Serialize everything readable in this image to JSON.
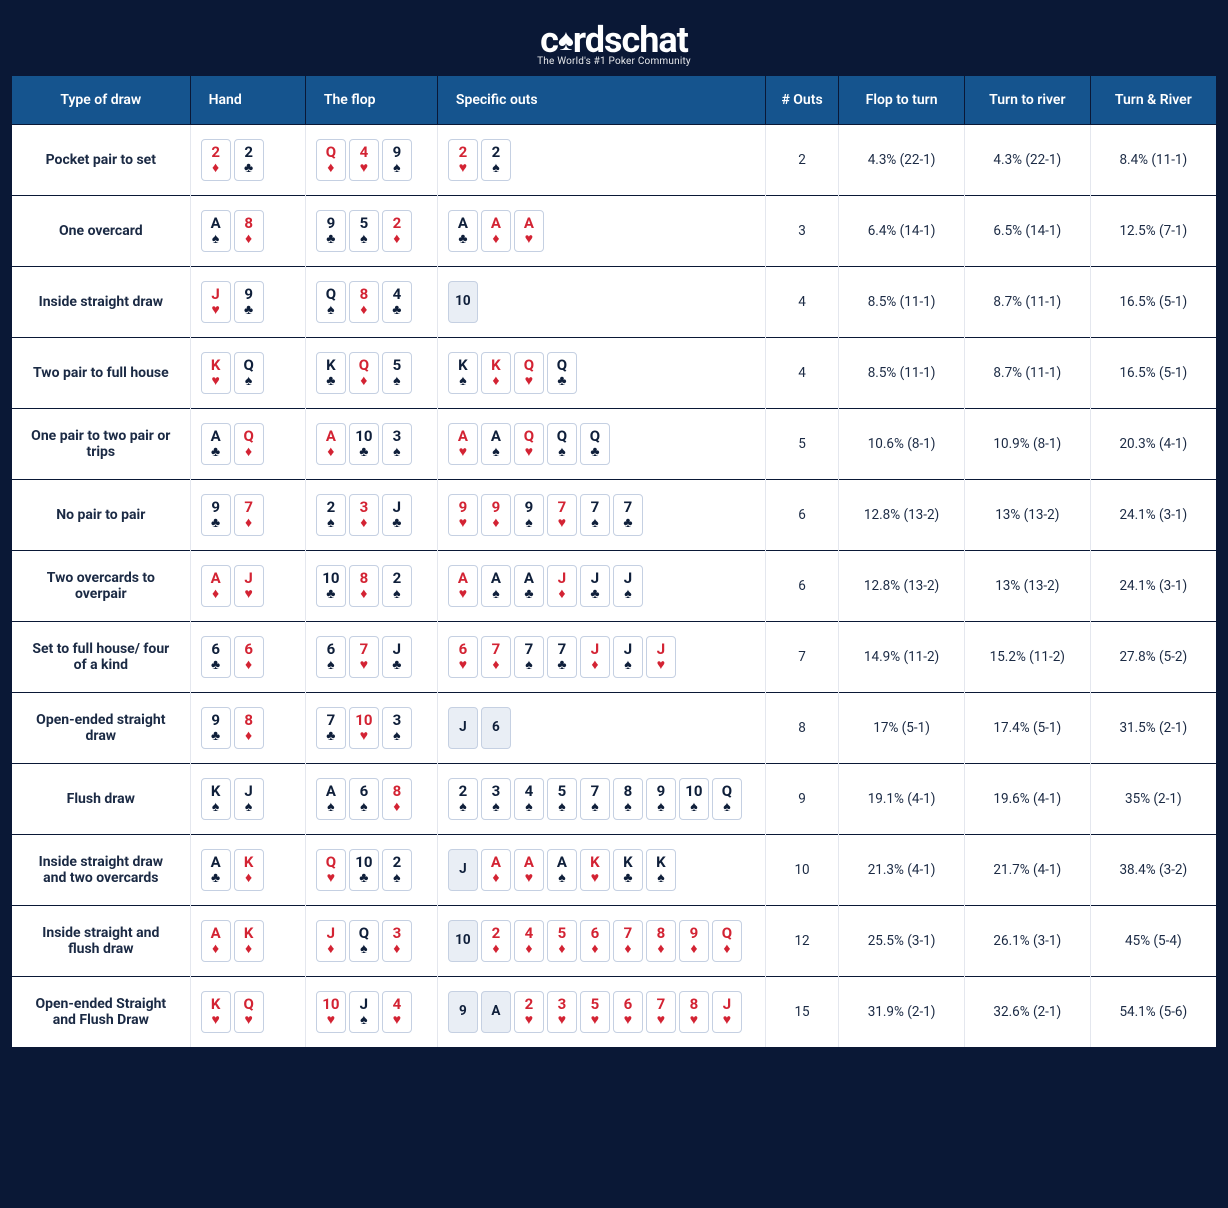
{
  "colors": {
    "page_bg": "#0a1836",
    "header_bg": "#15548e",
    "header_text": "#ffffff",
    "row_border": "#0a1836",
    "cell_border": "#e4e7ee",
    "text": "#1b2a44",
    "card_border": "#c5d0e2",
    "card_red": "#d32333",
    "card_black": "#0f1f3a",
    "blank_bg": "#e9eef5"
  },
  "typography": {
    "header_fontsize": 14,
    "body_fontsize": 13.5,
    "label_fontsize": 14,
    "card_rank_fontsize": 15,
    "card_suit_fontsize": 14
  },
  "logo": {
    "text_a": "c",
    "text_b": "rdschat",
    "tagline": "The World's #1 Poker Community"
  },
  "suits": {
    "s": "♠",
    "h": "♥",
    "d": "♦",
    "c": "♣"
  },
  "columns": [
    "Type of draw",
    "Hand",
    "The flop",
    "Specific outs",
    "# Outs",
    "Flop to turn",
    "Turn to river",
    "Turn & River"
  ],
  "rows": [
    {
      "label": "Pocket pair to set",
      "hand": [
        [
          "2",
          "d"
        ],
        [
          "2",
          "c"
        ]
      ],
      "flop": [
        [
          "Q",
          "d"
        ],
        [
          "4",
          "h"
        ],
        [
          "9",
          "s"
        ]
      ],
      "outs_cards": [
        [
          "2",
          "h"
        ],
        [
          "2",
          "s"
        ]
      ],
      "outs": "2",
      "flop_turn": "4.3% (22-1)",
      "turn_river": "4.3% (22-1)",
      "both": "8.4% (11-1)"
    },
    {
      "label": "One overcard",
      "hand": [
        [
          "A",
          "s"
        ],
        [
          "8",
          "d"
        ]
      ],
      "flop": [
        [
          "9",
          "c"
        ],
        [
          "5",
          "s"
        ],
        [
          "2",
          "d"
        ]
      ],
      "outs_cards": [
        [
          "A",
          "c"
        ],
        [
          "A",
          "d"
        ],
        [
          "A",
          "h"
        ]
      ],
      "outs": "3",
      "flop_turn": "6.4% (14-1)",
      "turn_river": "6.5% (14-1)",
      "both": "12.5% (7-1)"
    },
    {
      "label": "Inside straight draw",
      "hand": [
        [
          "J",
          "h"
        ],
        [
          "9",
          "c"
        ]
      ],
      "flop": [
        [
          "Q",
          "s"
        ],
        [
          "8",
          "d"
        ],
        [
          "4",
          "c"
        ]
      ],
      "outs_cards": [
        [
          "10",
          null
        ]
      ],
      "outs": "4",
      "flop_turn": "8.5% (11-1)",
      "turn_river": "8.7% (11-1)",
      "both": "16.5% (5-1)"
    },
    {
      "label": "Two pair to full house",
      "hand": [
        [
          "K",
          "h"
        ],
        [
          "Q",
          "s"
        ]
      ],
      "flop": [
        [
          "K",
          "c"
        ],
        [
          "Q",
          "d"
        ],
        [
          "5",
          "s"
        ]
      ],
      "outs_cards": [
        [
          "K",
          "s"
        ],
        [
          "K",
          "d"
        ],
        [
          "Q",
          "h"
        ],
        [
          "Q",
          "c"
        ]
      ],
      "outs": "4",
      "flop_turn": "8.5% (11-1)",
      "turn_river": "8.7% (11-1)",
      "both": "16.5% (5-1)"
    },
    {
      "label": "One pair to two pair or trips",
      "hand": [
        [
          "A",
          "c"
        ],
        [
          "Q",
          "d"
        ]
      ],
      "flop": [
        [
          "A",
          "d"
        ],
        [
          "10",
          "c"
        ],
        [
          "3",
          "s"
        ]
      ],
      "outs_cards": [
        [
          "A",
          "h"
        ],
        [
          "A",
          "s"
        ],
        [
          "Q",
          "h"
        ],
        [
          "Q",
          "s"
        ],
        [
          "Q",
          "c"
        ]
      ],
      "outs": "5",
      "flop_turn": "10.6% (8-1)",
      "turn_river": "10.9% (8-1)",
      "both": "20.3% (4-1)"
    },
    {
      "label": "No pair to pair",
      "hand": [
        [
          "9",
          "c"
        ],
        [
          "7",
          "d"
        ]
      ],
      "flop": [
        [
          "2",
          "s"
        ],
        [
          "3",
          "d"
        ],
        [
          "J",
          "c"
        ]
      ],
      "outs_cards": [
        [
          "9",
          "h"
        ],
        [
          "9",
          "d"
        ],
        [
          "9",
          "s"
        ],
        [
          "7",
          "h"
        ],
        [
          "7",
          "s"
        ],
        [
          "7",
          "c"
        ]
      ],
      "outs": "6",
      "flop_turn": "12.8% (13-2)",
      "turn_river": "13% (13-2)",
      "both": "24.1% (3-1)"
    },
    {
      "label": "Two overcards to overpair",
      "hand": [
        [
          "A",
          "d"
        ],
        [
          "J",
          "h"
        ]
      ],
      "flop": [
        [
          "10",
          "c"
        ],
        [
          "8",
          "d"
        ],
        [
          "2",
          "s"
        ]
      ],
      "outs_cards": [
        [
          "A",
          "h"
        ],
        [
          "A",
          "s"
        ],
        [
          "A",
          "c"
        ],
        [
          "J",
          "d"
        ],
        [
          "J",
          "c"
        ],
        [
          "J",
          "s"
        ]
      ],
      "outs": "6",
      "flop_turn": "12.8% (13-2)",
      "turn_river": "13% (13-2)",
      "both": "24.1% (3-1)"
    },
    {
      "label": "Set to full house/ four of a kind",
      "hand": [
        [
          "6",
          "c"
        ],
        [
          "6",
          "d"
        ]
      ],
      "flop": [
        [
          "6",
          "s"
        ],
        [
          "7",
          "h"
        ],
        [
          "J",
          "c"
        ]
      ],
      "outs_cards": [
        [
          "6",
          "h"
        ],
        [
          "7",
          "d"
        ],
        [
          "7",
          "s"
        ],
        [
          "7",
          "c"
        ],
        [
          "J",
          "d"
        ],
        [
          "J",
          "s"
        ],
        [
          "J",
          "h"
        ]
      ],
      "outs": "7",
      "flop_turn": "14.9% (11-2)",
      "turn_river": "15.2% (11-2)",
      "both": "27.8% (5-2)"
    },
    {
      "label": "Open-ended straight draw",
      "hand": [
        [
          "9",
          "c"
        ],
        [
          "8",
          "d"
        ]
      ],
      "flop": [
        [
          "7",
          "c"
        ],
        [
          "10",
          "h"
        ],
        [
          "3",
          "s"
        ]
      ],
      "outs_cards": [
        [
          "J",
          null
        ],
        [
          "6",
          null
        ]
      ],
      "outs": "8",
      "flop_turn": "17% (5-1)",
      "turn_river": "17.4% (5-1)",
      "both": "31.5% (2-1)"
    },
    {
      "label": "Flush draw",
      "hand": [
        [
          "K",
          "s"
        ],
        [
          "J",
          "s"
        ]
      ],
      "flop": [
        [
          "A",
          "s"
        ],
        [
          "6",
          "s"
        ],
        [
          "8",
          "d"
        ]
      ],
      "outs_cards": [
        [
          "2",
          "s"
        ],
        [
          "3",
          "s"
        ],
        [
          "4",
          "s"
        ],
        [
          "5",
          "s"
        ],
        [
          "7",
          "s"
        ],
        [
          "8",
          "s"
        ],
        [
          "9",
          "s"
        ],
        [
          "10",
          "s"
        ],
        [
          "Q",
          "s"
        ]
      ],
      "outs": "9",
      "flop_turn": "19.1% (4-1)",
      "turn_river": "19.6% (4-1)",
      "both": "35% (2-1)"
    },
    {
      "label": "Inside straight draw and two overcards",
      "hand": [
        [
          "A",
          "c"
        ],
        [
          "K",
          "d"
        ]
      ],
      "flop": [
        [
          "Q",
          "h"
        ],
        [
          "10",
          "c"
        ],
        [
          "2",
          "s"
        ]
      ],
      "outs_cards": [
        [
          "J",
          null
        ],
        [
          "A",
          "d"
        ],
        [
          "A",
          "h"
        ],
        [
          "A",
          "s"
        ],
        [
          "K",
          "h"
        ],
        [
          "K",
          "c"
        ],
        [
          "K",
          "s"
        ]
      ],
      "outs": "10",
      "flop_turn": "21.3% (4-1)",
      "turn_river": "21.7% (4-1)",
      "both": "38.4% (3-2)"
    },
    {
      "label": "Inside straight and flush draw",
      "hand": [
        [
          "A",
          "d"
        ],
        [
          "K",
          "d"
        ]
      ],
      "flop": [
        [
          "J",
          "d"
        ],
        [
          "Q",
          "s"
        ],
        [
          "3",
          "d"
        ]
      ],
      "outs_cards": [
        [
          "10",
          null
        ],
        [
          "2",
          "d"
        ],
        [
          "4",
          "d"
        ],
        [
          "5",
          "d"
        ],
        [
          "6",
          "d"
        ],
        [
          "7",
          "d"
        ],
        [
          "8",
          "d"
        ],
        [
          "9",
          "d"
        ],
        [
          "Q",
          "d"
        ]
      ],
      "outs": "12",
      "flop_turn": "25.5% (3-1)",
      "turn_river": "26.1% (3-1)",
      "both": "45% (5-4)"
    },
    {
      "label": "Open-ended Straight and Flush Draw",
      "hand": [
        [
          "K",
          "h"
        ],
        [
          "Q",
          "h"
        ]
      ],
      "flop": [
        [
          "10",
          "h"
        ],
        [
          "J",
          "s"
        ],
        [
          "4",
          "h"
        ]
      ],
      "outs_cards": [
        [
          "9",
          null
        ],
        [
          "A",
          null
        ],
        [
          "2",
          "h"
        ],
        [
          "3",
          "h"
        ],
        [
          "5",
          "h"
        ],
        [
          "6",
          "h"
        ],
        [
          "7",
          "h"
        ],
        [
          "8",
          "h"
        ],
        [
          "J",
          "h"
        ]
      ],
      "outs": "15",
      "flop_turn": "31.9% (2-1)",
      "turn_river": "32.6% (2-1)",
      "both": "54.1% (5-6)"
    }
  ]
}
